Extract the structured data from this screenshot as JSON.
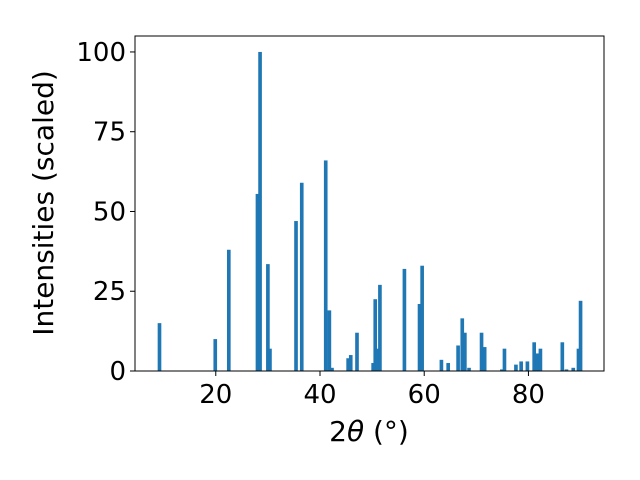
{
  "chart_data": {
    "type": "bar",
    "xlabel_prefix": "2",
    "xlabel_symbol": "θ",
    "xlabel_suffix": " (°)",
    "ylabel": "Intensities (scaled)",
    "xlim": [
      4.5,
      94.5
    ],
    "ylim": [
      0,
      105
    ],
    "xticks": [
      20,
      40,
      60,
      80
    ],
    "yticks": [
      0,
      25,
      50,
      75,
      100
    ],
    "bar_width": 0.7,
    "bar_color": "#1f77b4",
    "grid": false,
    "legend": "none",
    "x": [
      9.2,
      19.9,
      22.5,
      28.0,
      28.5,
      30.0,
      30.4,
      35.4,
      36.5,
      41.1,
      41.8,
      42.3,
      45.4,
      45.9,
      47.1,
      50.2,
      50.6,
      51.0,
      51.5,
      56.2,
      59.1,
      59.6,
      63.3,
      64.6,
      66.5,
      67.3,
      67.8,
      68.6,
      71.0,
      71.6,
      74.9,
      75.4,
      77.6,
      78.6,
      79.8,
      81.1,
      81.7,
      82.3,
      86.5,
      87.3,
      88.6,
      89.6,
      90.0
    ],
    "values": [
      15,
      10,
      38,
      55.5,
      100,
      33.5,
      7,
      47,
      59,
      66,
      19,
      1,
      4,
      5,
      12,
      2.5,
      22.5,
      7,
      27,
      32,
      21,
      33,
      3.5,
      2.5,
      8,
      16.5,
      12,
      1,
      12,
      7.5,
      0.5,
      7,
      2,
      3,
      3,
      9,
      5.5,
      7,
      9,
      0.5,
      1,
      7,
      22
    ]
  }
}
